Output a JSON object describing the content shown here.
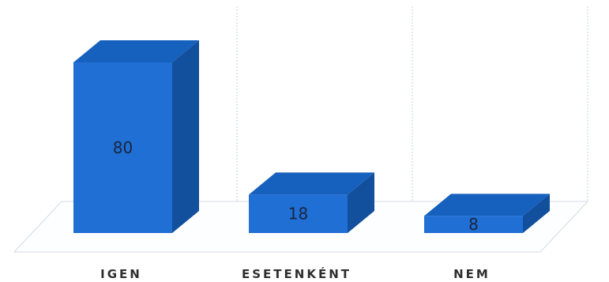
{
  "chart_data": {
    "type": "bar",
    "categories": [
      "IGEN",
      "ESETENKÉNT",
      "NEM"
    ],
    "values": [
      80,
      18,
      8
    ],
    "ylim": [
      0,
      100
    ],
    "grid": true,
    "legend": "none",
    "data_labels": true,
    "colors": {
      "front": "#1f6fd4",
      "top": "#1660be",
      "side": "#124f9c"
    }
  }
}
